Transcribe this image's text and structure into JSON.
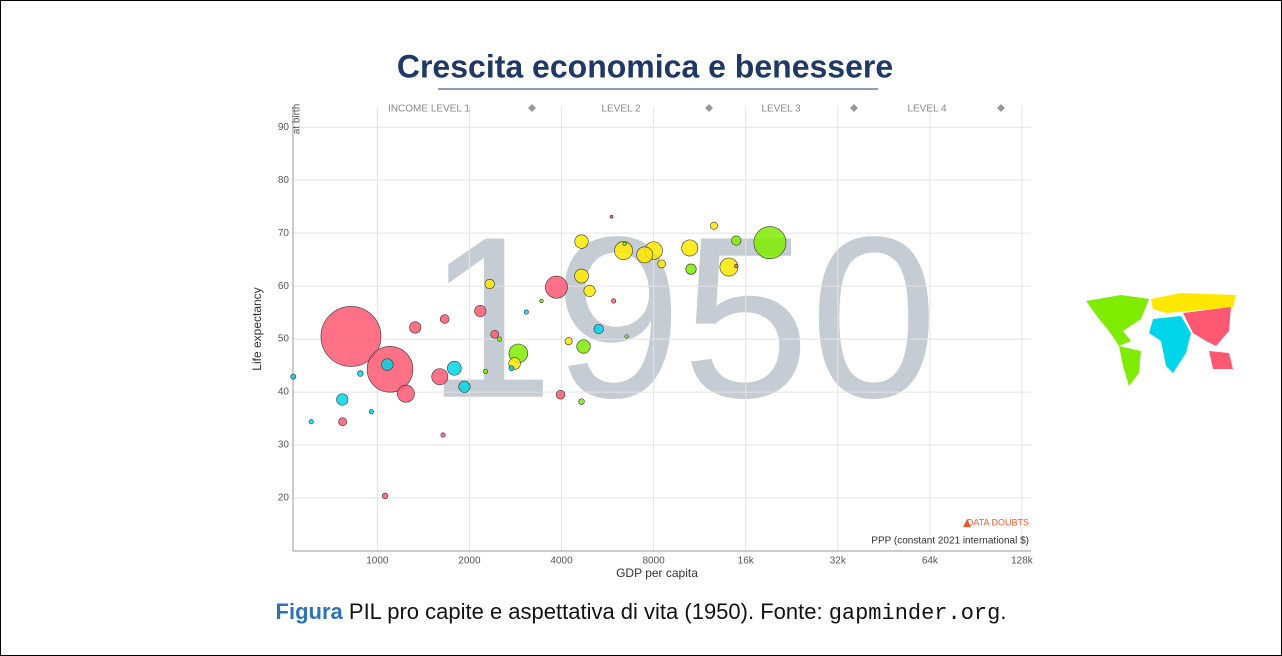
{
  "slide": {
    "title": "Crescita economica e benessere",
    "caption": {
      "label": "Figura",
      "text": " PIL pro capite e aspettativa di vita (1950). Fonte: ",
      "source": "gapminder.org",
      "end": "."
    }
  },
  "chart_data": {
    "type": "scatter",
    "year": 1950,
    "x_label": "GDP per capita",
    "y_label": "Life expectancy",
    "y_sublabel": "at birth",
    "x_note": "PPP (constant 2021 international $)",
    "warning": "DATA DOUBTS",
    "income_levels": [
      "INCOME LEVEL 1",
      "LEVEL 2",
      "LEVEL 3",
      "LEVEL 4"
    ],
    "xscale": "log",
    "grid": true,
    "xlim": [
      530,
      137000
    ],
    "ylim": [
      10,
      94
    ],
    "xticks": [
      1000,
      2000,
      4000,
      8000,
      {
        "value": 16000,
        "label": "16k"
      },
      {
        "value": 32000,
        "label": "32k"
      },
      {
        "value": 64000,
        "label": "64k"
      },
      {
        "value": 128000,
        "label": "128k"
      }
    ],
    "yticks": [
      20,
      30,
      40,
      50,
      60,
      70,
      80,
      90
    ],
    "series": [
      {
        "color": "#ff5872",
        "x": [
          820,
          1100,
          3850,
          1330,
          1600,
          1240,
          770,
          1060,
          1660,
          2170,
          3970,
          2420,
          5830,
          14900,
          5920,
          1640
        ],
        "values": [
          50.5,
          44.3,
          59.8,
          52.2,
          42.9,
          39.7,
          34.4,
          20.4,
          53.8,
          55.3,
          39.5,
          50.9,
          73.1,
          63.8,
          57.2,
          31.9
        ],
        "sizes": [
          550,
          320,
          75,
          20,
          40,
          45,
          10,
          5,
          12,
          20,
          12,
          10,
          1,
          2,
          3,
          3
        ]
      },
      {
        "color": "#7feb00",
        "x": [
          19200,
          2890,
          4720,
          10600,
          14900,
          4650,
          6430,
          3440,
          2510,
          2256,
          6530
        ],
        "values": [
          68.2,
          47.3,
          48.6,
          63.2,
          68.6,
          38.2,
          68,
          57.2,
          50,
          43.9,
          50.5
        ],
        "sizes": [
          158,
          54,
          28,
          17,
          14,
          5,
          2,
          2,
          3,
          3,
          2
        ]
      },
      {
        "color": "#ffe700",
        "x": [
          6380,
          7480,
          8000,
          14100,
          10500,
          4650,
          4650,
          4940,
          2330,
          2810,
          4220,
          8500,
          12600
        ],
        "values": [
          66.7,
          65.9,
          66.7,
          63.6,
          67.2,
          61.9,
          68.4,
          59.1,
          60.4,
          45.4,
          49.6,
          64.2,
          71.4
        ],
        "sizes": [
          50,
          40,
          48,
          50,
          40,
          30,
          28,
          20,
          14,
          21,
          8,
          10,
          8
        ]
      },
      {
        "color": "#00d5e9",
        "x": [
          1785,
          768,
          1078,
          1926,
          608,
          5290,
          531,
          3070,
          2745,
          880,
          956
        ],
        "values": [
          44.5,
          38.6,
          45.2,
          41,
          34.4,
          51.9,
          42.9,
          55.1,
          44.5,
          43.5,
          36.3
        ],
        "sizes": [
          30,
          20,
          21,
          20,
          3,
          14,
          4,
          3,
          4,
          5,
          3
        ]
      }
    ]
  }
}
